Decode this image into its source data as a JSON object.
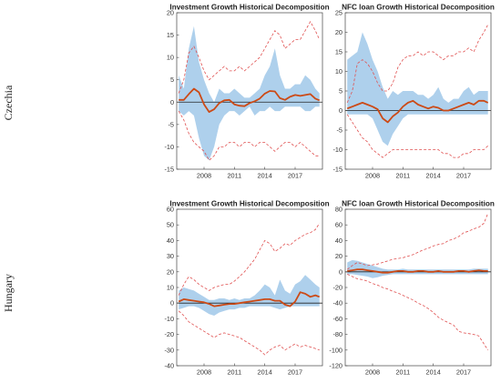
{
  "colors": {
    "band": "#aed0ec",
    "median": "#cc4a16",
    "ci": "#e05050",
    "axis": "#444444",
    "zero": "#222222"
  },
  "row_labels": [
    "Czechia",
    "Hungary"
  ],
  "chart_data": [
    {
      "type": "area",
      "title": "Investment Growth Historical Decomposition",
      "row": "Czechia",
      "xlabel": "",
      "ylabel": "",
      "xlim": [
        2005.3,
        2019.7
      ],
      "ylim": [
        -15,
        20
      ],
      "yticks": [
        -15,
        -10,
        -5,
        0,
        5,
        10,
        15,
        20
      ],
      "xticks": [
        2008,
        2011,
        2014,
        2017
      ],
      "grid": false,
      "legend": "none",
      "x": [
        2005.5,
        2006,
        2006.5,
        2007,
        2007.5,
        2008,
        2008.5,
        2009,
        2009.5,
        2010,
        2010.5,
        2011,
        2011.5,
        2012,
        2012.5,
        2013,
        2013.5,
        2014,
        2014.5,
        2015,
        2015.5,
        2016,
        2016.5,
        2017,
        2017.5,
        2018,
        2018.5,
        2019,
        2019.4
      ],
      "series": [
        {
          "role": "contribution band upper",
          "values": [
            6,
            3,
            12,
            17,
            9,
            5,
            2,
            0,
            3,
            2,
            2,
            3,
            2,
            1,
            1,
            2,
            3,
            6,
            8,
            12,
            6,
            3,
            3,
            4,
            4,
            6,
            5,
            3,
            2
          ]
        },
        {
          "role": "contribution band lower",
          "values": [
            -2,
            -3,
            -2,
            -3,
            -8,
            -12,
            -13,
            -10,
            -5,
            -3,
            -2,
            -2,
            -3,
            -2,
            -1,
            -3,
            -2,
            -2,
            -1,
            -2,
            -2,
            -1,
            -1,
            -1,
            -1,
            -2,
            -2,
            -1,
            -1
          ]
        },
        {
          "role": "median",
          "values": [
            0.5,
            0.5,
            1.8,
            3,
            2.2,
            -0.5,
            -2.2,
            -1.6,
            -0.2,
            0.4,
            0.5,
            -0.5,
            -0.8,
            -0.9,
            -0.2,
            0.2,
            0.8,
            1.9,
            2.5,
            2.4,
            0.9,
            0.5,
            1.2,
            1.6,
            1.4,
            1.6,
            1.8,
            0.8,
            0.4
          ]
        },
        {
          "role": "upper bound",
          "values": [
            2,
            5,
            11,
            12.5,
            10,
            7,
            5,
            6,
            7,
            8,
            7,
            7,
            8,
            7,
            8,
            9,
            10,
            12,
            14,
            16,
            15,
            12,
            13,
            14,
            14,
            16,
            18,
            16,
            14
          ]
        },
        {
          "role": "lower bound",
          "values": [
            -2,
            -4,
            -7,
            -9,
            -10,
            -11,
            -13,
            -12,
            -10,
            -10,
            -9,
            -9,
            -10,
            -9,
            -9,
            -10,
            -9,
            -9,
            -10,
            -11,
            -10,
            -9,
            -9,
            -10,
            -9,
            -10,
            -11,
            -12,
            -12
          ]
        }
      ]
    },
    {
      "type": "area",
      "title": "NFC loan Growth Historical Decomposition",
      "row": "Czechia",
      "xlabel": "",
      "ylabel": "",
      "xlim": [
        2005.3,
        2019.7
      ],
      "ylim": [
        -15,
        25
      ],
      "yticks": [
        -15,
        -10,
        -5,
        0,
        5,
        10,
        15,
        20,
        25
      ],
      "xticks": [
        2008,
        2011,
        2014,
        2017
      ],
      "grid": false,
      "legend": "none",
      "x": [
        2005.5,
        2006,
        2006.5,
        2007,
        2007.5,
        2008,
        2008.5,
        2009,
        2009.5,
        2010,
        2010.5,
        2011,
        2011.5,
        2012,
        2012.5,
        2013,
        2013.5,
        2014,
        2014.5,
        2015,
        2015.5,
        2016,
        2016.5,
        2017,
        2017.5,
        2018,
        2018.5,
        2019,
        2019.4
      ],
      "series": [
        {
          "role": "contribution band upper",
          "values": [
            13,
            14,
            15,
            20,
            17,
            13,
            10,
            6,
            3,
            5,
            4,
            5,
            5,
            5,
            4,
            4,
            3,
            4,
            6,
            3,
            2,
            3,
            3,
            5,
            6,
            4,
            5,
            5,
            5
          ]
        },
        {
          "role": "contribution band lower",
          "values": [
            -1,
            -1,
            -1,
            -1,
            -1,
            -2,
            -5,
            -8,
            -9,
            -6,
            -4,
            -2,
            -1,
            -1,
            -1,
            -1,
            -1,
            -1,
            -1,
            -1,
            -1,
            -1,
            -1,
            -1,
            -1,
            -1,
            -1,
            -1,
            -1
          ]
        },
        {
          "role": "median",
          "values": [
            0.5,
            1,
            1.5,
            2,
            1.5,
            1,
            0.3,
            -2,
            -3,
            -1.5,
            -0.5,
            1,
            2,
            2.5,
            1.5,
            1,
            0.5,
            1,
            0.7,
            0,
            0,
            0.5,
            1,
            1.5,
            2,
            1.5,
            2.5,
            2.5,
            2
          ]
        },
        {
          "role": "upper bound",
          "values": [
            2,
            5,
            12,
            13,
            12,
            10,
            7,
            5,
            5,
            7,
            11,
            13,
            14,
            14,
            15,
            14,
            15,
            15,
            14,
            13,
            14,
            14,
            15,
            15,
            16,
            15,
            18,
            20,
            22
          ]
        },
        {
          "role": "lower bound",
          "values": [
            -1,
            -3,
            -5,
            -7,
            -8,
            -10,
            -11,
            -12,
            -11,
            -10,
            -10,
            -10,
            -10,
            -10,
            -10,
            -10,
            -10,
            -10,
            -10,
            -11,
            -11,
            -12,
            -12,
            -11,
            -11,
            -10,
            -10,
            -10,
            -9
          ]
        }
      ]
    },
    {
      "type": "area",
      "title": "Investment Growth Historical Decomposition",
      "row": "Hungary",
      "xlabel": "",
      "ylabel": "",
      "xlim": [
        2005.3,
        2019.7
      ],
      "ylim": [
        -40,
        60
      ],
      "yticks": [
        -40,
        -30,
        -20,
        -10,
        0,
        10,
        20,
        30,
        40,
        50,
        60
      ],
      "xticks": [
        2008,
        2011,
        2014,
        2017
      ],
      "grid": false,
      "legend": "none",
      "x": [
        2005.5,
        2006,
        2006.5,
        2007,
        2007.5,
        2008,
        2008.5,
        2009,
        2009.5,
        2010,
        2010.5,
        2011,
        2011.5,
        2012,
        2012.5,
        2013,
        2013.5,
        2014,
        2014.5,
        2015,
        2015.5,
        2016,
        2016.5,
        2017,
        2017.5,
        2018,
        2018.5,
        2019,
        2019.4
      ],
      "series": [
        {
          "role": "contribution band upper",
          "values": [
            8,
            10,
            9,
            8,
            6,
            4,
            2,
            2,
            3,
            3,
            2,
            3,
            2,
            3,
            3,
            5,
            8,
            12,
            10,
            5,
            15,
            8,
            6,
            12,
            14,
            18,
            15,
            12,
            10
          ]
        },
        {
          "role": "contribution band lower",
          "values": [
            -4,
            -3,
            -2,
            -2,
            -3,
            -5,
            -7,
            -8,
            -6,
            -5,
            -4,
            -4,
            -3,
            -3,
            -2,
            -2,
            -2,
            -2,
            -2,
            -3,
            -4,
            -3,
            -2,
            -2,
            -2,
            -2,
            -2,
            -2,
            -2
          ]
        },
        {
          "role": "median",
          "values": [
            1,
            2.5,
            2,
            1.5,
            1,
            0.5,
            -0.5,
            -2,
            -1.5,
            -1,
            -0.5,
            -0.5,
            0,
            0.5,
            1,
            1.5,
            2,
            2.5,
            2.5,
            1.5,
            1.5,
            -1,
            -2,
            1,
            7,
            6,
            4,
            5,
            4
          ]
        },
        {
          "role": "upper bound",
          "values": [
            5,
            12,
            17,
            15,
            12,
            10,
            8,
            10,
            11,
            12,
            12,
            14,
            17,
            20,
            24,
            28,
            34,
            40,
            38,
            33,
            35,
            38,
            37,
            40,
            42,
            44,
            45,
            47,
            51
          ]
        },
        {
          "role": "lower bound",
          "values": [
            -5,
            -8,
            -12,
            -14,
            -16,
            -18,
            -20,
            -22,
            -20,
            -19,
            -20,
            -21,
            -22,
            -24,
            -26,
            -28,
            -30,
            -33,
            -30,
            -28,
            -27,
            -30,
            -28,
            -26,
            -28,
            -27,
            -28,
            -29,
            -30
          ]
        }
      ]
    },
    {
      "type": "area",
      "title": "NFC loan Growth Historical Decomposition",
      "row": "Hungary",
      "xlabel": "",
      "ylabel": "",
      "xlim": [
        2005.3,
        2019.7
      ],
      "ylim": [
        -120,
        80
      ],
      "yticks": [
        -120,
        -100,
        -80,
        -60,
        -40,
        -20,
        0,
        20,
        40,
        60,
        80
      ],
      "xticks": [
        2008,
        2011,
        2014,
        2017
      ],
      "grid": false,
      "legend": "none",
      "x": [
        2005.5,
        2006,
        2006.5,
        2007,
        2007.5,
        2008,
        2008.5,
        2009,
        2009.5,
        2010,
        2010.5,
        2011,
        2011.5,
        2012,
        2012.5,
        2013,
        2013.5,
        2014,
        2014.5,
        2015,
        2015.5,
        2016,
        2016.5,
        2017,
        2017.5,
        2018,
        2018.5,
        2019,
        2019.4
      ],
      "series": [
        {
          "role": "contribution band upper",
          "values": [
            12,
            15,
            14,
            12,
            10,
            8,
            6,
            4,
            3,
            3,
            3,
            4,
            3,
            3,
            3,
            3,
            3,
            3,
            3,
            3,
            3,
            3,
            3,
            3,
            3,
            4,
            4,
            4,
            4
          ]
        },
        {
          "role": "contribution band lower",
          "values": [
            -3,
            -3,
            -4,
            -5,
            -6,
            -8,
            -7,
            -5,
            -4,
            -3,
            -3,
            -3,
            -3,
            -3,
            -3,
            -3,
            -3,
            -3,
            -3,
            -3,
            -3,
            -3,
            -3,
            -3,
            -3,
            -3,
            -3,
            -3,
            -3
          ]
        },
        {
          "role": "median",
          "values": [
            1,
            2,
            3,
            3,
            2,
            1,
            0,
            -1,
            -1,
            0,
            1,
            1,
            0,
            0,
            1,
            1,
            0,
            0,
            1,
            0,
            0,
            0,
            1,
            1,
            0,
            1,
            2,
            1,
            1
          ]
        },
        {
          "role": "upper bound",
          "values": [
            3,
            8,
            12,
            10,
            8,
            9,
            10,
            12,
            14,
            16,
            17,
            18,
            20,
            22,
            25,
            28,
            30,
            33,
            35,
            36,
            40,
            42,
            45,
            50,
            52,
            55,
            57,
            62,
            75
          ]
        },
        {
          "role": "lower bound",
          "values": [
            -3,
            -6,
            -9,
            -10,
            -12,
            -15,
            -17,
            -20,
            -22,
            -25,
            -27,
            -30,
            -33,
            -36,
            -40,
            -43,
            -47,
            -52,
            -58,
            -62,
            -65,
            -68,
            -76,
            -78,
            -79,
            -80,
            -82,
            -92,
            -100
          ]
        }
      ]
    }
  ]
}
